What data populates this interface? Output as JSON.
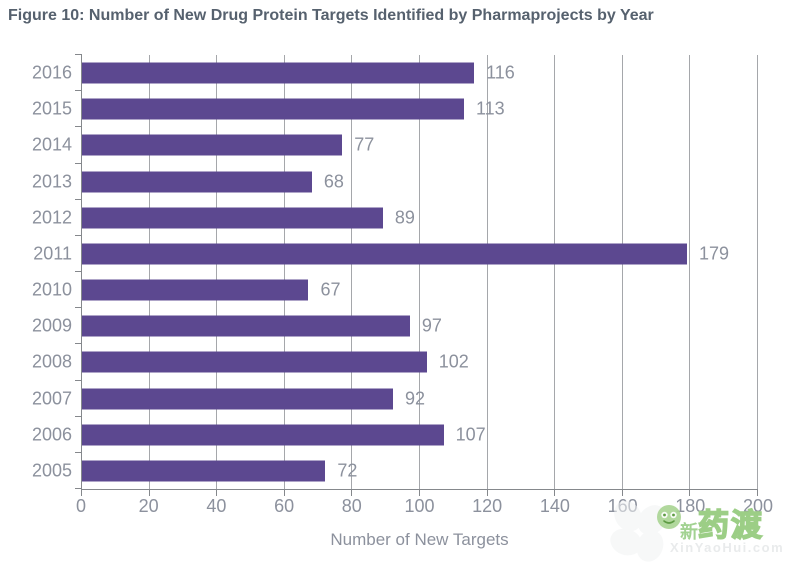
{
  "title": "Figure 10: Number of New Drug Protein Targets Identified by Pharmaprojects by Year",
  "chart_data": {
    "type": "bar",
    "orientation": "horizontal",
    "title": "Figure 10: Number of New Drug Protein Targets Identified by Pharmaprojects by Year",
    "categories": [
      "2016",
      "2015",
      "2014",
      "2013",
      "2012",
      "2011",
      "2010",
      "2009",
      "2008",
      "2007",
      "2006",
      "2005"
    ],
    "values": [
      116,
      113,
      77,
      68,
      89,
      179,
      67,
      97,
      102,
      92,
      107,
      72
    ],
    "xlabel": "Number of New Targets",
    "ylabel": "",
    "xlim": [
      0,
      200
    ],
    "xticks": [
      0,
      20,
      40,
      60,
      80,
      100,
      120,
      140,
      160,
      180,
      200
    ],
    "grid": true,
    "legend": "none",
    "bar_color": "#5C4890"
  },
  "colors": {
    "bar": "#5C4890",
    "title_text": "#56616E",
    "label_text": "#8C919D",
    "gridline": "#A5A7AB",
    "axis": "#85888C",
    "watermark_green": "#9CCE86"
  },
  "watermark": {
    "brand_prefix": "新",
    "brand_cn": "药渡",
    "url": "XinYaoHui.com"
  }
}
